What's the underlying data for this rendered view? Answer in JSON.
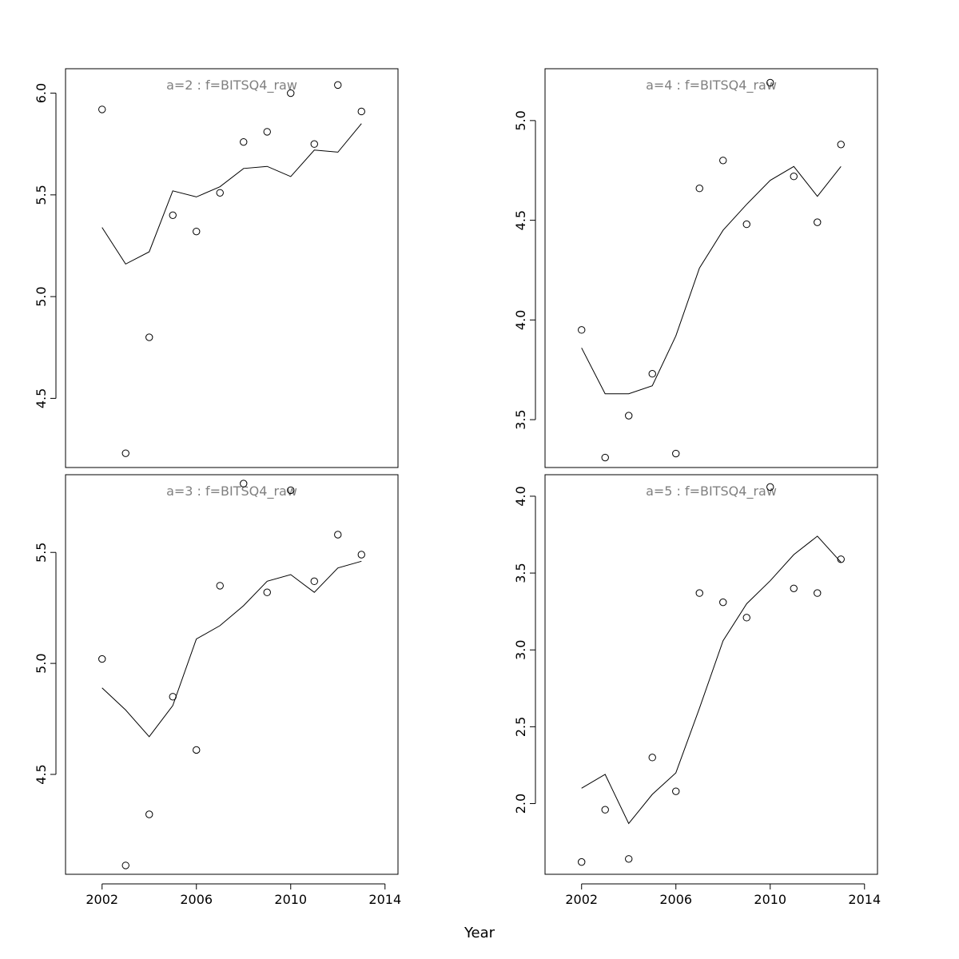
{
  "xlabel": "Year",
  "chart_data": [
    {
      "type": "scatter",
      "title": "a=2  :  f=BITSQ4_raw",
      "x": [
        2002,
        2003,
        2004,
        2005,
        2006,
        2007,
        2008,
        2009,
        2010,
        2011,
        2012,
        2013
      ],
      "series": [
        {
          "type": "scatter",
          "values": [
            5.92,
            4.23,
            4.8,
            5.4,
            5.32,
            5.51,
            5.76,
            5.81,
            6.0,
            5.75,
            6.04,
            5.91
          ]
        },
        {
          "type": "line",
          "values": [
            5.34,
            5.16,
            5.22,
            5.52,
            5.49,
            5.54,
            5.63,
            5.64,
            5.59,
            5.72,
            5.71,
            5.85
          ]
        }
      ],
      "xlim": [
        2000.45,
        2014.55
      ],
      "ylim": [
        4.16,
        6.12
      ],
      "xticks": [
        2002,
        2006,
        2010,
        2014
      ],
      "yticks": [
        4.5,
        5.0,
        5.5,
        6.0
      ],
      "show_x_ticks": false
    },
    {
      "type": "scatter",
      "title": "a=4  :  f=BITSQ4_raw",
      "x": [
        2002,
        2003,
        2004,
        2005,
        2006,
        2007,
        2008,
        2009,
        2010,
        2011,
        2012,
        2013
      ],
      "series": [
        {
          "type": "scatter",
          "values": [
            3.95,
            3.31,
            3.52,
            3.73,
            3.33,
            4.66,
            4.8,
            4.48,
            5.19,
            4.72,
            4.49,
            4.88
          ]
        },
        {
          "type": "line",
          "values": [
            3.86,
            3.63,
            3.63,
            3.67,
            3.92,
            4.26,
            4.45,
            4.58,
            4.7,
            4.77,
            4.62,
            4.77
          ]
        }
      ],
      "xlim": [
        2000.45,
        2014.55
      ],
      "ylim": [
        3.26,
        5.26
      ],
      "xticks": [
        2002,
        2006,
        2010,
        2014
      ],
      "yticks": [
        3.5,
        4.0,
        4.5,
        5.0
      ],
      "show_x_ticks": false
    },
    {
      "type": "scatter",
      "title": "a=3  :  f=BITSQ4_raw",
      "x": [
        2002,
        2003,
        2004,
        2005,
        2006,
        2007,
        2008,
        2009,
        2010,
        2011,
        2012,
        2013
      ],
      "series": [
        {
          "type": "scatter",
          "values": [
            5.02,
            4.09,
            4.32,
            4.85,
            4.61,
            5.35,
            5.81,
            5.32,
            5.78,
            5.37,
            5.58,
            5.49
          ]
        },
        {
          "type": "line",
          "values": [
            4.89,
            4.79,
            4.67,
            4.81,
            5.11,
            5.17,
            5.26,
            5.37,
            5.4,
            5.32,
            5.43,
            5.46
          ]
        }
      ],
      "xlim": [
        2000.45,
        2014.55
      ],
      "ylim": [
        4.05,
        5.85
      ],
      "xticks": [
        2002,
        2006,
        2010,
        2014
      ],
      "yticks": [
        4.5,
        5.0,
        5.5
      ],
      "show_x_ticks": true
    },
    {
      "type": "scatter",
      "title": "a=5  :  f=BITSQ4_raw",
      "x": [
        2002,
        2003,
        2004,
        2005,
        2006,
        2007,
        2008,
        2009,
        2010,
        2011,
        2012,
        2013
      ],
      "series": [
        {
          "type": "scatter",
          "values": [
            1.62,
            1.96,
            1.64,
            2.3,
            2.08,
            3.37,
            3.31,
            3.21,
            4.06,
            3.4,
            3.37,
            3.59
          ]
        },
        {
          "type": "line",
          "values": [
            2.1,
            2.19,
            1.87,
            2.06,
            2.2,
            2.62,
            3.06,
            3.3,
            3.45,
            3.62,
            3.74,
            3.57
          ]
        }
      ],
      "xlim": [
        2000.45,
        2014.55
      ],
      "ylim": [
        1.54,
        4.14
      ],
      "xticks": [
        2002,
        2006,
        2010,
        2014
      ],
      "yticks": [
        2.0,
        2.5,
        3.0,
        3.5,
        4.0
      ],
      "show_x_ticks": true
    }
  ]
}
